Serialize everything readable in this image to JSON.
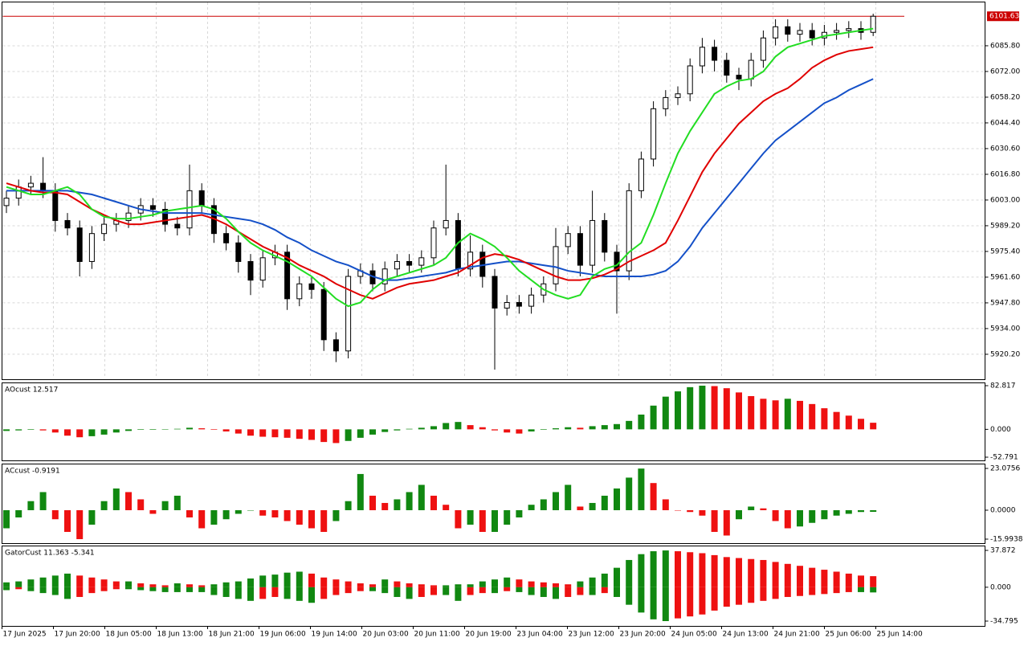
{
  "chart_data": [
    {
      "type": "candlestick",
      "open": [
        6000,
        6004,
        6010,
        6012,
        6008,
        5992,
        5988,
        5970,
        5985,
        5990,
        5992,
        5996,
        6000,
        5998,
        5990,
        5988,
        6008,
        6000,
        5985,
        5980,
        5970,
        5960,
        5972,
        5975,
        5950,
        5958,
        5955,
        5928,
        5922,
        5962,
        5965,
        5958,
        5966,
        5970,
        5968,
        5972,
        5988,
        5992,
        5966,
        5975,
        5962,
        5945,
        5948,
        5946,
        5952,
        5958,
        5978,
        5985,
        5968,
        5992,
        5975,
        5965,
        6008,
        6025,
        6052,
        6058,
        6060,
        6075,
        6085,
        6078,
        6070,
        6068,
        6078,
        6090,
        6096,
        6092,
        6094,
        6090,
        6093,
        6094,
        6095,
        6093
      ],
      "high": [
        6008,
        6014,
        6016,
        6026,
        6012,
        5996,
        5992,
        5989,
        5994,
        5996,
        6000,
        6004,
        6004,
        6002,
        5994,
        6022,
        6012,
        6004,
        5989,
        5984,
        5974,
        5976,
        5979,
        5979,
        5962,
        5962,
        5959,
        5932,
        5966,
        5969,
        5969,
        5970,
        5974,
        5974,
        5976,
        5992,
        6022,
        5996,
        5984,
        5979,
        5966,
        5952,
        5952,
        5956,
        5962,
        5988,
        5989,
        5989,
        6008,
        5996,
        5979,
        6012,
        6029,
        6056,
        6062,
        6064,
        6079,
        6090,
        6089,
        6082,
        6074,
        6082,
        6094,
        6100,
        6100,
        6098,
        6098,
        6097,
        6098,
        6099,
        6099,
        6103
      ],
      "low": [
        5996,
        6000,
        6006,
        6004,
        5986,
        5984,
        5962,
        5966,
        5981,
        5986,
        5988,
        5992,
        5994,
        5986,
        5984,
        5984,
        5996,
        5980,
        5976,
        5964,
        5952,
        5956,
        5968,
        5944,
        5946,
        5950,
        5922,
        5916,
        5918,
        5958,
        5954,
        5954,
        5962,
        5964,
        5964,
        5968,
        5984,
        5962,
        5962,
        5956,
        5912,
        5941,
        5942,
        5942,
        5948,
        5954,
        5974,
        5962,
        5964,
        5970,
        5942,
        5960,
        6004,
        6021,
        6048,
        6054,
        6056,
        6071,
        6072,
        6066,
        6062,
        6064,
        6074,
        6086,
        6088,
        6088,
        6086,
        6086,
        6089,
        6090,
        6089,
        6091
      ],
      "close": [
        6004,
        6010,
        6012,
        6008,
        5992,
        5988,
        5970,
        5985,
        5990,
        5992,
        5996,
        6000,
        5998,
        5990,
        5988,
        6008,
        6000,
        5985,
        5980,
        5970,
        5960,
        5972,
        5975,
        5950,
        5958,
        5955,
        5928,
        5922,
        5962,
        5965,
        5958,
        5966,
        5970,
        5968,
        5972,
        5988,
        5992,
        5966,
        5975,
        5962,
        5945,
        5948,
        5946,
        5952,
        5958,
        5978,
        5985,
        5968,
        5992,
        5975,
        5965,
        6008,
        6025,
        6052,
        6058,
        6060,
        6075,
        6085,
        6078,
        6070,
        6068,
        6078,
        6090,
        6096,
        6092,
        6094,
        6090,
        6093,
        6094,
        6095,
        6093,
        6101.63
      ],
      "up_color": "#ffffff",
      "down_color": "#000000",
      "lines": [
        {
          "color": "#1450c8",
          "values": [
            6008,
            6008,
            6008,
            6008,
            6008,
            6008,
            6007,
            6006,
            6004,
            6002,
            6000,
            5998,
            5997,
            5996,
            5996,
            5996,
            5996,
            5995,
            5994,
            5993,
            5992,
            5990,
            5987,
            5983,
            5980,
            5976,
            5973,
            5970,
            5968,
            5965,
            5962,
            5960,
            5960,
            5961,
            5962,
            5963,
            5964,
            5966,
            5967,
            5968,
            5969,
            5970,
            5970,
            5969,
            5968,
            5967,
            5965,
            5964,
            5963,
            5962,
            5962,
            5962,
            5962,
            5963,
            5965,
            5970,
            5978,
            5988,
            5996,
            6004,
            6012,
            6020,
            6028,
            6035,
            6040,
            6045,
            6050,
            6055,
            6058,
            6062,
            6065,
            6068
          ]
        },
        {
          "color": "#e00000",
          "values": [
            6012,
            6010,
            6008,
            6007,
            6007,
            6006,
            6002,
            5998,
            5995,
            5992,
            5990,
            5990,
            5991,
            5992,
            5993,
            5994,
            5995,
            5993,
            5990,
            5986,
            5982,
            5978,
            5975,
            5972,
            5968,
            5965,
            5962,
            5958,
            5955,
            5952,
            5950,
            5953,
            5956,
            5958,
            5959,
            5960,
            5962,
            5964,
            5968,
            5972,
            5974,
            5973,
            5971,
            5968,
            5965,
            5962,
            5960,
            5960,
            5961,
            5963,
            5966,
            5970,
            5973,
            5976,
            5980,
            5992,
            6005,
            6018,
            6028,
            6036,
            6044,
            6050,
            6056,
            6060,
            6063,
            6068,
            6074,
            6078,
            6081,
            6083,
            6084,
            6085
          ]
        },
        {
          "color": "#22dd22",
          "values": [
            6010,
            6008,
            6006,
            6006,
            6008,
            6010,
            6006,
            5998,
            5994,
            5993,
            5993,
            5994,
            5995,
            5997,
            5998,
            5999,
            6000,
            5998,
            5993,
            5986,
            5980,
            5976,
            5973,
            5970,
            5966,
            5962,
            5956,
            5950,
            5946,
            5948,
            5955,
            5960,
            5962,
            5964,
            5966,
            5968,
            5972,
            5980,
            5985,
            5982,
            5978,
            5972,
            5965,
            5960,
            5955,
            5952,
            5950,
            5952,
            5962,
            5966,
            5968,
            5975,
            5980,
            5995,
            6012,
            6028,
            6040,
            6050,
            6060,
            6064,
            6067,
            6068,
            6072,
            6080,
            6085,
            6087,
            6089,
            6091,
            6092,
            6093,
            6094,
            6095
          ]
        }
      ],
      "ylim": [
        5906.8,
        6109.5
      ],
      "yticks": [
        {
          "value": 6085.8,
          "label": "6085.80"
        },
        {
          "value": 6072,
          "label": "6072.00"
        },
        {
          "value": 6058.2,
          "label": "6058.20"
        },
        {
          "value": 6044.4,
          "label": "6044.40"
        },
        {
          "value": 6030.6,
          "label": "6030.60"
        },
        {
          "value": 6016.8,
          "label": "6016.80"
        },
        {
          "value": 6003,
          "label": "6003.00"
        },
        {
          "value": 5989.2,
          "label": "5989.20"
        },
        {
          "value": 5975.4,
          "label": "5975.40"
        },
        {
          "value": 5961.6,
          "label": "5961.60"
        },
        {
          "value": 5947.8,
          "label": "5947.80"
        },
        {
          "value": 5934,
          "label": "5934.00"
        },
        {
          "value": 5920.2,
          "label": "5920.20"
        }
      ],
      "last_price": 6101.63,
      "last_price_color": "#cc0000",
      "x_labels": [
        "17 Jun 2025",
        "17 Jun 20:00",
        "18 Jun 05:00",
        "18 Jun 13:00",
        "18 Jun 21:00",
        "19 Jun 06:00",
        "19 Jun 14:00",
        "20 Jun 03:00",
        "20 Jun 11:00",
        "20 Jun 19:00",
        "23 Jun 04:00",
        "23 Jun 12:00",
        "23 Jun 20:00",
        "24 Jun 05:00",
        "24 Jun 13:00",
        "24 Jun 21:00",
        "25 Jun 06:00",
        "25 Jun 14:00"
      ],
      "grid": true
    },
    {
      "type": "histogram",
      "label": "AOcust 12.517",
      "values": [
        -3,
        -2,
        -1,
        -2,
        -6,
        -12,
        -15,
        -13,
        -10,
        -6,
        -3,
        -1,
        -1,
        0,
        1,
        3,
        2,
        -1,
        -4,
        -8,
        -12,
        -14,
        -15,
        -16,
        -18,
        -20,
        -24,
        -26,
        -22,
        -16,
        -10,
        -5,
        -2,
        1,
        3,
        6,
        12,
        14,
        8,
        4,
        -2,
        -6,
        -8,
        -4,
        -1,
        2,
        4,
        3,
        6,
        8,
        10,
        16,
        28,
        45,
        62,
        72,
        80,
        82.8,
        82,
        78,
        70,
        63,
        58,
        55,
        58,
        54,
        48,
        40,
        33,
        26,
        20,
        12.517
      ],
      "up_color": "#118811",
      "down_color": "#ee1111",
      "ylim": [
        -52.791,
        82.817
      ],
      "yticks": [
        82.817,
        {
          "value": 0,
          "label": "0.000"
        },
        -52.791
      ]
    },
    {
      "type": "histogram",
      "label": "ACcust -0.9191",
      "values": [
        -10,
        -4,
        5,
        10,
        -5,
        -12,
        -16,
        -8,
        5,
        12,
        10,
        6,
        -2,
        5,
        8,
        -4,
        -10,
        -8,
        -5,
        -2,
        0,
        -3,
        -4,
        -6,
        -8,
        -10,
        -12,
        -6,
        5,
        20,
        8,
        4,
        6,
        10,
        14,
        8,
        3,
        -10,
        -8,
        -12,
        -12,
        -8,
        -4,
        3,
        6,
        10,
        14,
        2,
        4,
        8,
        12,
        18,
        23,
        15,
        6,
        0,
        -1,
        -3,
        -12,
        -14,
        -5,
        2,
        1,
        -6,
        -10,
        -9,
        -7,
        -5,
        -3,
        -2,
        -1,
        -0.9191
      ],
      "up_color": "#118811",
      "down_color": "#ee1111",
      "ylim": [
        -15.9938,
        23.0756
      ],
      "yticks": [
        23.0756,
        {
          "value": 0,
          "label": "0.0000"
        },
        -15.9938
      ]
    },
    {
      "type": "gator",
      "label": "GatorCust 11.363 -5.341",
      "upper": [
        5,
        6,
        8,
        10,
        12,
        14,
        12,
        10,
        8,
        6,
        6,
        4,
        3,
        2,
        4,
        3,
        2,
        3,
        5,
        6,
        9,
        12,
        13,
        15,
        16,
        14,
        10,
        8,
        6,
        4,
        3,
        8,
        6,
        4,
        3,
        2,
        2,
        3,
        3,
        6,
        8,
        10,
        8,
        6,
        5,
        4,
        3,
        6,
        10,
        14,
        20,
        28,
        34,
        37,
        37.8,
        37,
        36,
        35,
        33,
        31,
        30,
        29,
        28,
        26,
        24,
        22,
        20,
        18,
        16,
        14,
        12,
        11.363
      ],
      "lower": [
        -3,
        -2,
        -4,
        -6,
        -8,
        -12,
        -10,
        -6,
        -4,
        -2,
        -2,
        -3,
        -4,
        -5,
        -5,
        -5,
        -5,
        -8,
        -10,
        -12,
        -14,
        -12,
        -10,
        -12,
        -14,
        -16,
        -12,
        -8,
        -6,
        -4,
        -4,
        -6,
        -10,
        -12,
        -10,
        -8,
        -8,
        -14,
        -8,
        -6,
        -6,
        -4,
        -5,
        -8,
        -10,
        -12,
        -10,
        -8,
        -8,
        -6,
        -10,
        -18,
        -26,
        -33,
        -34.8,
        -32,
        -30,
        -28,
        -24,
        -20,
        -18,
        -16,
        -14,
        -12,
        -10,
        -9,
        -8,
        -7,
        -6,
        -5,
        -5,
        -5.341
      ],
      "up_color": "#118811",
      "down_color": "#ee1111",
      "ylim": [
        -34.795,
        37.872
      ],
      "yticks": [
        37.872,
        {
          "value": 0,
          "label": "0.000"
        },
        -34.795
      ]
    }
  ]
}
